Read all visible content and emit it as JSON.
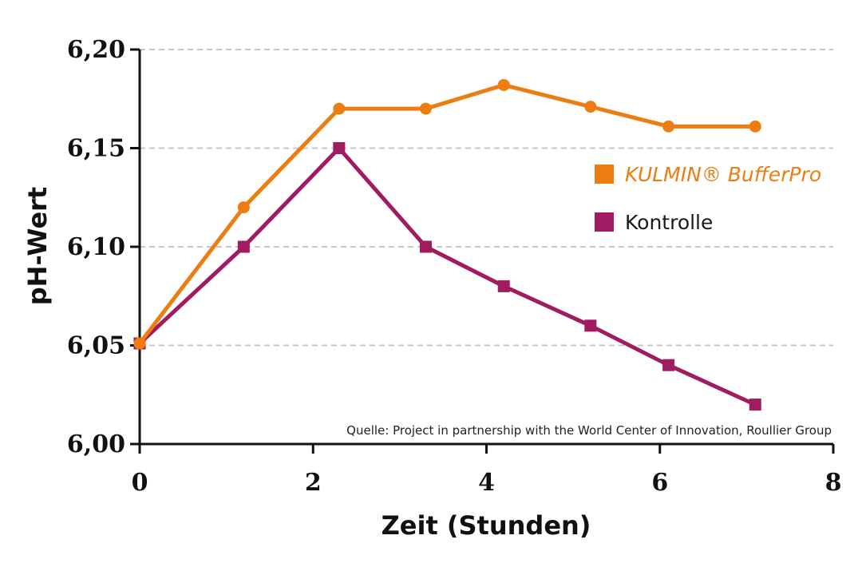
{
  "chart_data": {
    "type": "line",
    "xlabel": "Zeit (Stunden)",
    "ylabel": "pH-Wert",
    "xlim": [
      0,
      8
    ],
    "ylim": [
      6.0,
      6.2
    ],
    "x_ticks": [
      0,
      2,
      4,
      6,
      8
    ],
    "x_tick_labels": [
      "0",
      "2",
      "4",
      "6",
      "8"
    ],
    "y_ticks": [
      6.0,
      6.05,
      6.1,
      6.15,
      6.2
    ],
    "y_tick_labels": [
      "6,00",
      "6,05",
      "6,10",
      "6,15",
      "6,20"
    ],
    "grid": "horizontal dashed",
    "legend_position": "right",
    "source": "Quelle: Project in partnership with the World Center of Innovation, Roullier Group",
    "series": [
      {
        "name": "KULMIN® BufferPro",
        "color": "#ee7d11",
        "marker": "circle",
        "x": [
          0,
          1.2,
          2.3,
          3.3,
          4.2,
          5.2,
          6.1,
          7.1
        ],
        "values": [
          6.051,
          6.12,
          6.17,
          6.17,
          6.182,
          6.171,
          6.161,
          6.161
        ]
      },
      {
        "name": "Kontrolle",
        "color": "#a01b5f",
        "marker": "square",
        "x": [
          0,
          1.2,
          2.3,
          3.3,
          4.2,
          5.2,
          6.1,
          7.1
        ],
        "values": [
          6.051,
          6.1,
          6.15,
          6.1,
          6.08,
          6.06,
          6.04,
          6.02
        ]
      }
    ]
  }
}
